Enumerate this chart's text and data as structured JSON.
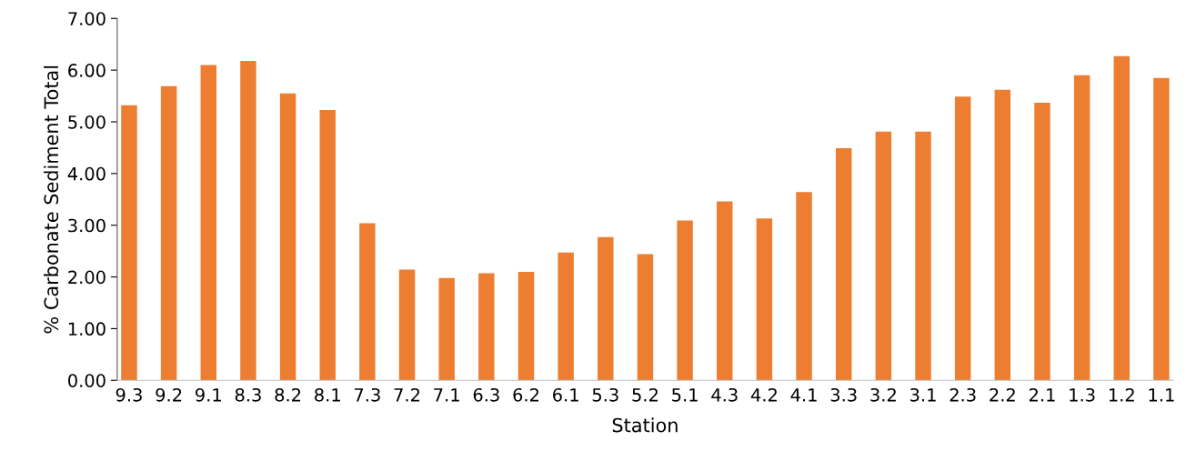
{
  "chart_data": {
    "type": "bar",
    "xlabel": "Station",
    "ylabel": "% Carbonate Sediment Total",
    "categories": [
      "9.3",
      "9.2",
      "9.1",
      "8.3",
      "8.2",
      "8.1",
      "7.3",
      "7.2",
      "7.1",
      "6.3",
      "6.2",
      "6.1",
      "5.3",
      "5.2",
      "5.1",
      "4.3",
      "4.2",
      "4.1",
      "3.3",
      "3.2",
      "3.1",
      "2.3",
      "2.2",
      "2.1",
      "1.3",
      "1.2",
      "1.1"
    ],
    "values": [
      5.32,
      5.69,
      6.1,
      6.18,
      5.55,
      5.23,
      3.04,
      2.14,
      1.98,
      2.07,
      2.1,
      2.47,
      2.77,
      2.44,
      3.09,
      3.46,
      3.13,
      3.64,
      4.49,
      4.81,
      4.81,
      5.49,
      5.62,
      5.37,
      5.9,
      6.27,
      5.85
    ],
    "color": "#ed7d31",
    "ylim": [
      0,
      7
    ],
    "yticks": [
      {
        "value": 0,
        "label": "0.00"
      },
      {
        "value": 1,
        "label": "1.00"
      },
      {
        "value": 2,
        "label": "2.00"
      },
      {
        "value": 3,
        "label": "3.00"
      },
      {
        "value": 4,
        "label": "4.00"
      },
      {
        "value": 5,
        "label": "5.00"
      },
      {
        "value": 6,
        "label": "6.00"
      },
      {
        "value": 7,
        "label": "7.00"
      }
    ],
    "grid": false,
    "legend": false
  }
}
